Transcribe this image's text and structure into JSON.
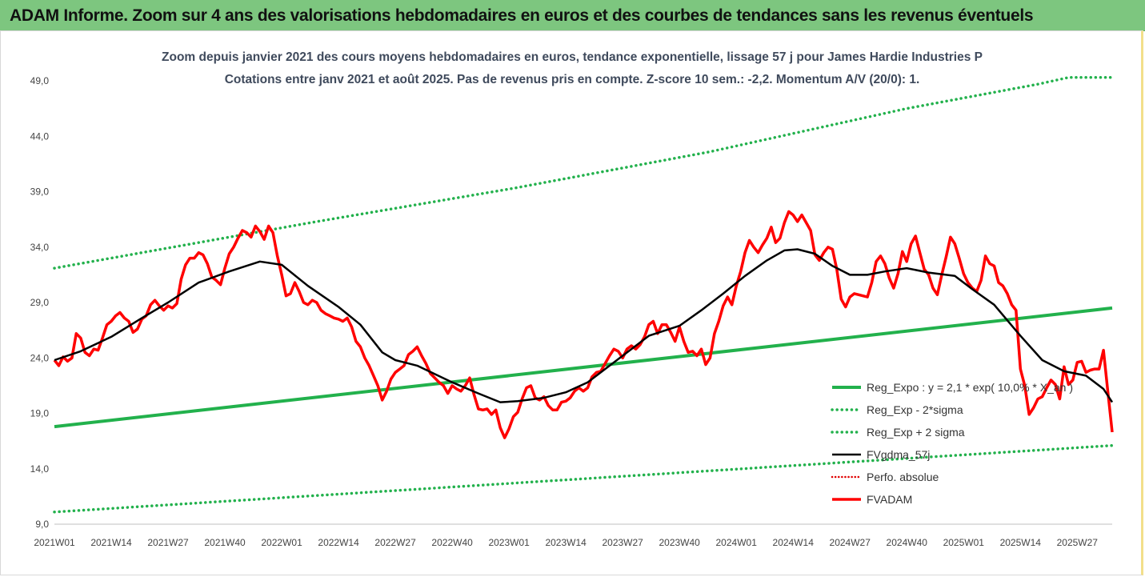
{
  "header": {
    "title": "ADAM Informe. Zoom sur 4 ans des valorisations hebdomadaires en euros et des courbes de tendances sans les revenus éventuels"
  },
  "colors": {
    "header_bg": "#7dc67f",
    "reg": "#22b14c",
    "sma": "#000000",
    "price": "#ff0000",
    "perfo": "#e00000"
  },
  "chart_data": {
    "type": "line",
    "title": "Zoom depuis janvier 2021 des cours moyens hebdomadaires en euros, tendance exponentielle, lissage 57 j pour James Hardie Industries P",
    "subtitle": "Cotations entre janv 2021 et août 2025. Pas de revenus pris en compte. Z-score 10 sem.: -2,2. Momentum A/V (20/0): 1.",
    "ylim": [
      9,
      49
    ],
    "y_ticks": [
      "9,0",
      "14,0",
      "19,0",
      "24,0",
      "29,0",
      "34,0",
      "39,0",
      "44,0",
      "49,0"
    ],
    "x_ticks": [
      "2021W01",
      "2021W14",
      "2021W27",
      "2021W40",
      "2022W01",
      "2022W14",
      "2022W27",
      "2022W40",
      "2023W01",
      "2023W14",
      "2023W27",
      "2023W40",
      "2024W01",
      "2024W14",
      "2024W27",
      "2024W40",
      "2025W01",
      "2025W14",
      "2025W27"
    ],
    "x_week_index_of_ticks": [
      0,
      13,
      26,
      39,
      52,
      65,
      78,
      91,
      104,
      117,
      130,
      143,
      156,
      169,
      182,
      195,
      208,
      221,
      234
    ],
    "legend_position": "center-right",
    "series": [
      {
        "name": "Reg_Expo : y = 2,1 * exp( 10,0% * X_an )",
        "style": "solid-green",
        "points": [
          [
            0,
            17.8
          ],
          [
            242,
            28.5
          ]
        ]
      },
      {
        "name": "Reg_Exp - 2*sigma",
        "style": "dotted-green",
        "points": [
          [
            0,
            10.1
          ],
          [
            242,
            16.1
          ]
        ]
      },
      {
        "name": "Reg_Exp + 2 sigma",
        "style": "dotted-green",
        "points": [
          [
            0,
            32.1
          ],
          [
            60,
            36.3
          ],
          [
            105,
            39.3
          ],
          [
            150,
            42.6
          ],
          [
            195,
            46.5
          ],
          [
            225,
            48.7
          ],
          [
            232,
            49.3
          ],
          [
            242,
            49.3
          ]
        ]
      },
      {
        "name": "FVgdma_57j",
        "style": "solid-black",
        "points": [
          [
            0,
            23.8
          ],
          [
            6,
            24.6
          ],
          [
            13,
            25.9
          ],
          [
            20,
            27.6
          ],
          [
            26,
            29.0
          ],
          [
            33,
            30.8
          ],
          [
            40,
            31.8
          ],
          [
            47,
            32.7
          ],
          [
            52,
            32.4
          ],
          [
            58,
            30.5
          ],
          [
            65,
            28.6
          ],
          [
            70,
            27.0
          ],
          [
            75,
            24.5
          ],
          [
            78,
            23.8
          ],
          [
            83,
            23.3
          ],
          [
            91,
            21.8
          ],
          [
            97,
            20.8
          ],
          [
            102,
            20.0
          ],
          [
            106,
            20.1
          ],
          [
            112,
            20.4
          ],
          [
            117,
            20.9
          ],
          [
            122,
            21.8
          ],
          [
            126,
            23.0
          ],
          [
            132,
            24.8
          ],
          [
            136,
            26.0
          ],
          [
            143,
            26.9
          ],
          [
            148,
            28.3
          ],
          [
            153,
            29.8
          ],
          [
            158,
            31.4
          ],
          [
            163,
            32.8
          ],
          [
            167,
            33.7
          ],
          [
            170,
            33.8
          ],
          [
            174,
            33.4
          ],
          [
            178,
            32.3
          ],
          [
            182,
            31.5
          ],
          [
            186,
            31.5
          ],
          [
            190,
            31.8
          ],
          [
            195,
            32.1
          ],
          [
            200,
            31.7
          ],
          [
            206,
            31.4
          ],
          [
            210,
            30.2
          ],
          [
            215,
            28.8
          ],
          [
            221,
            26.0
          ],
          [
            226,
            23.8
          ],
          [
            231,
            22.8
          ],
          [
            236,
            22.4
          ],
          [
            240,
            21.2
          ],
          [
            242,
            20.0
          ]
        ]
      },
      {
        "name": "Perfo. absolue",
        "style": "dotted-red",
        "points": []
      },
      {
        "name": "FVADAM",
        "style": "solid-red",
        "points": [
          [
            0,
            23.8
          ],
          [
            1,
            23.3
          ],
          [
            2,
            24.1
          ],
          [
            3,
            23.7
          ],
          [
            4,
            24.0
          ],
          [
            5,
            26.2
          ],
          [
            6,
            25.8
          ],
          [
            7,
            24.5
          ],
          [
            8,
            24.2
          ],
          [
            9,
            24.8
          ],
          [
            10,
            24.7
          ],
          [
            11,
            25.8
          ],
          [
            12,
            27.0
          ],
          [
            13,
            27.3
          ],
          [
            14,
            27.8
          ],
          [
            15,
            28.1
          ],
          [
            16,
            27.6
          ],
          [
            17,
            27.3
          ],
          [
            18,
            26.3
          ],
          [
            19,
            26.6
          ],
          [
            20,
            27.5
          ],
          [
            21,
            27.8
          ],
          [
            22,
            28.8
          ],
          [
            23,
            29.2
          ],
          [
            24,
            28.7
          ],
          [
            25,
            28.3
          ],
          [
            26,
            28.7
          ],
          [
            27,
            28.5
          ],
          [
            28,
            28.9
          ],
          [
            29,
            31.1
          ],
          [
            30,
            32.4
          ],
          [
            31,
            33.0
          ],
          [
            32,
            33.0
          ],
          [
            33,
            33.5
          ],
          [
            34,
            33.3
          ],
          [
            35,
            32.5
          ],
          [
            36,
            31.3
          ],
          [
            37,
            31.0
          ],
          [
            38,
            30.6
          ],
          [
            39,
            32.1
          ],
          [
            40,
            33.4
          ],
          [
            41,
            34.0
          ],
          [
            42,
            34.8
          ],
          [
            43,
            35.5
          ],
          [
            44,
            35.3
          ],
          [
            45,
            34.9
          ],
          [
            46,
            35.9
          ],
          [
            47,
            35.4
          ],
          [
            48,
            34.7
          ],
          [
            49,
            35.9
          ],
          [
            50,
            35.3
          ],
          [
            51,
            33.2
          ],
          [
            52,
            31.5
          ],
          [
            53,
            29.6
          ],
          [
            54,
            29.8
          ],
          [
            55,
            30.8
          ],
          [
            56,
            30.0
          ],
          [
            57,
            29.0
          ],
          [
            58,
            28.8
          ],
          [
            59,
            29.2
          ],
          [
            60,
            29.0
          ],
          [
            61,
            28.3
          ],
          [
            62,
            28.0
          ],
          [
            63,
            27.8
          ],
          [
            64,
            27.6
          ],
          [
            65,
            27.5
          ],
          [
            66,
            27.3
          ],
          [
            67,
            27.6
          ],
          [
            68,
            26.8
          ],
          [
            69,
            25.5
          ],
          [
            70,
            25.0
          ],
          [
            71,
            24.0
          ],
          [
            72,
            23.3
          ],
          [
            73,
            22.4
          ],
          [
            74,
            21.5
          ],
          [
            75,
            20.2
          ],
          [
            76,
            21.0
          ],
          [
            77,
            22.1
          ],
          [
            78,
            22.7
          ],
          [
            79,
            23.0
          ],
          [
            80,
            23.3
          ],
          [
            81,
            24.3
          ],
          [
            82,
            24.6
          ],
          [
            83,
            25.0
          ],
          [
            84,
            24.2
          ],
          [
            85,
            23.5
          ],
          [
            86,
            22.6
          ],
          [
            87,
            22.2
          ],
          [
            88,
            21.8
          ],
          [
            89,
            21.5
          ],
          [
            90,
            20.8
          ],
          [
            91,
            21.5
          ],
          [
            92,
            21.2
          ],
          [
            93,
            21.0
          ],
          [
            94,
            21.5
          ],
          [
            95,
            22.2
          ],
          [
            96,
            20.7
          ],
          [
            97,
            19.4
          ],
          [
            98,
            19.3
          ],
          [
            99,
            19.4
          ],
          [
            100,
            18.9
          ],
          [
            101,
            19.3
          ],
          [
            102,
            17.7
          ],
          [
            103,
            16.8
          ],
          [
            104,
            17.6
          ],
          [
            105,
            18.7
          ],
          [
            106,
            19.1
          ],
          [
            107,
            20.3
          ],
          [
            108,
            21.3
          ],
          [
            109,
            21.5
          ],
          [
            110,
            20.4
          ],
          [
            111,
            20.2
          ],
          [
            112,
            20.5
          ],
          [
            113,
            19.7
          ],
          [
            114,
            19.3
          ],
          [
            115,
            19.3
          ],
          [
            116,
            20.0
          ],
          [
            117,
            20.1
          ],
          [
            118,
            20.4
          ],
          [
            119,
            21.0
          ],
          [
            120,
            21.3
          ],
          [
            121,
            21.0
          ],
          [
            122,
            21.3
          ],
          [
            123,
            22.3
          ],
          [
            124,
            22.7
          ],
          [
            125,
            22.8
          ],
          [
            126,
            23.5
          ],
          [
            127,
            24.2
          ],
          [
            128,
            24.8
          ],
          [
            129,
            24.6
          ],
          [
            130,
            24.0
          ],
          [
            131,
            24.8
          ],
          [
            132,
            25.1
          ],
          [
            133,
            24.8
          ],
          [
            134,
            25.2
          ],
          [
            135,
            25.9
          ],
          [
            136,
            27.0
          ],
          [
            137,
            27.3
          ],
          [
            138,
            26.2
          ],
          [
            139,
            27.0
          ],
          [
            140,
            27.0
          ],
          [
            141,
            26.3
          ],
          [
            142,
            25.5
          ],
          [
            143,
            26.8
          ],
          [
            144,
            25.5
          ],
          [
            145,
            24.5
          ],
          [
            146,
            24.6
          ],
          [
            147,
            24.2
          ],
          [
            148,
            24.8
          ],
          [
            149,
            23.4
          ],
          [
            150,
            24.0
          ],
          [
            151,
            26.2
          ],
          [
            152,
            27.3
          ],
          [
            153,
            28.7
          ],
          [
            154,
            29.5
          ],
          [
            155,
            28.8
          ],
          [
            156,
            30.5
          ],
          [
            157,
            31.8
          ],
          [
            158,
            33.5
          ],
          [
            159,
            34.6
          ],
          [
            160,
            34.0
          ],
          [
            161,
            33.5
          ],
          [
            162,
            34.2
          ],
          [
            163,
            34.8
          ],
          [
            164,
            35.8
          ],
          [
            165,
            34.4
          ],
          [
            166,
            34.8
          ],
          [
            167,
            36.2
          ],
          [
            168,
            37.2
          ],
          [
            169,
            36.9
          ],
          [
            170,
            36.3
          ],
          [
            171,
            36.9
          ],
          [
            172,
            36.2
          ],
          [
            173,
            35.5
          ],
          [
            174,
            33.3
          ],
          [
            175,
            32.8
          ],
          [
            176,
            33.5
          ],
          [
            177,
            34.0
          ],
          [
            178,
            33.8
          ],
          [
            179,
            32.0
          ],
          [
            180,
            29.3
          ],
          [
            181,
            28.6
          ],
          [
            182,
            29.5
          ],
          [
            183,
            29.8
          ],
          [
            184,
            29.7
          ],
          [
            185,
            29.6
          ],
          [
            186,
            29.5
          ],
          [
            187,
            30.8
          ],
          [
            188,
            32.7
          ],
          [
            189,
            33.2
          ],
          [
            190,
            32.5
          ],
          [
            191,
            31.2
          ],
          [
            192,
            30.3
          ],
          [
            193,
            31.6
          ],
          [
            194,
            33.6
          ],
          [
            195,
            32.7
          ],
          [
            196,
            34.3
          ],
          [
            197,
            35.0
          ],
          [
            198,
            33.5
          ],
          [
            199,
            32.0
          ],
          [
            200,
            31.5
          ],
          [
            201,
            30.3
          ],
          [
            202,
            29.7
          ],
          [
            203,
            31.5
          ],
          [
            204,
            33.1
          ],
          [
            205,
            34.9
          ],
          [
            206,
            34.3
          ],
          [
            207,
            33.0
          ],
          [
            208,
            31.6
          ],
          [
            209,
            30.8
          ],
          [
            210,
            30.3
          ],
          [
            211,
            30.0
          ],
          [
            212,
            31.0
          ],
          [
            213,
            33.2
          ],
          [
            214,
            32.5
          ],
          [
            215,
            32.3
          ],
          [
            216,
            30.8
          ],
          [
            217,
            30.5
          ],
          [
            218,
            29.8
          ],
          [
            219,
            28.8
          ],
          [
            220,
            28.3
          ],
          [
            221,
            23.0
          ],
          [
            222,
            21.5
          ],
          [
            223,
            18.9
          ],
          [
            224,
            19.5
          ],
          [
            225,
            20.3
          ],
          [
            226,
            20.5
          ],
          [
            227,
            21.3
          ],
          [
            228,
            22.0
          ],
          [
            229,
            21.6
          ],
          [
            230,
            20.3
          ],
          [
            231,
            23.2
          ],
          [
            232,
            21.6
          ],
          [
            233,
            22.0
          ],
          [
            234,
            23.6
          ],
          [
            235,
            23.7
          ],
          [
            236,
            22.7
          ],
          [
            237,
            22.9
          ],
          [
            238,
            23.0
          ],
          [
            239,
            23.0
          ],
          [
            240,
            24.7
          ],
          [
            241,
            21.0
          ],
          [
            242,
            17.3
          ]
        ]
      }
    ]
  }
}
